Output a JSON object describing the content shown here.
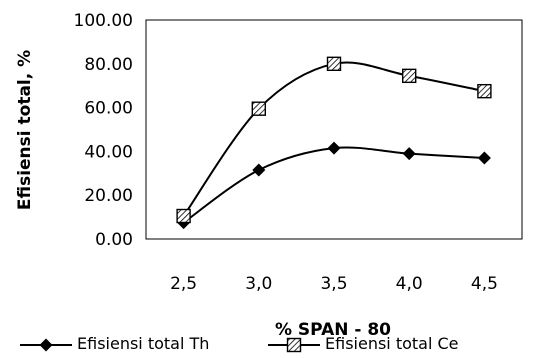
{
  "chart_data": {
    "type": "line",
    "categories": [
      "2,5",
      "3,0",
      "3,5",
      "4,0",
      "4,5"
    ],
    "series": [
      {
        "name": "Efisiensi total Th",
        "values": [
          7.5,
          31.5,
          41.5,
          39.0,
          37.0
        ],
        "marker": "diamond",
        "color": "#000000"
      },
      {
        "name": "Efisiensi total Ce",
        "values": [
          10.5,
          59.5,
          80.0,
          74.5,
          67.5
        ],
        "marker": "square-hatched",
        "color": "#000000"
      }
    ],
    "xlabel": "% SPAN - 80",
    "ylabel": "Efisiensi total, %",
    "ylim": [
      0,
      100
    ],
    "yticks": [
      "0.00",
      "20.00",
      "40.00",
      "60.00",
      "80.00",
      "100.00"
    ],
    "grid": false,
    "legend": "bottom",
    "smooth": true
  }
}
